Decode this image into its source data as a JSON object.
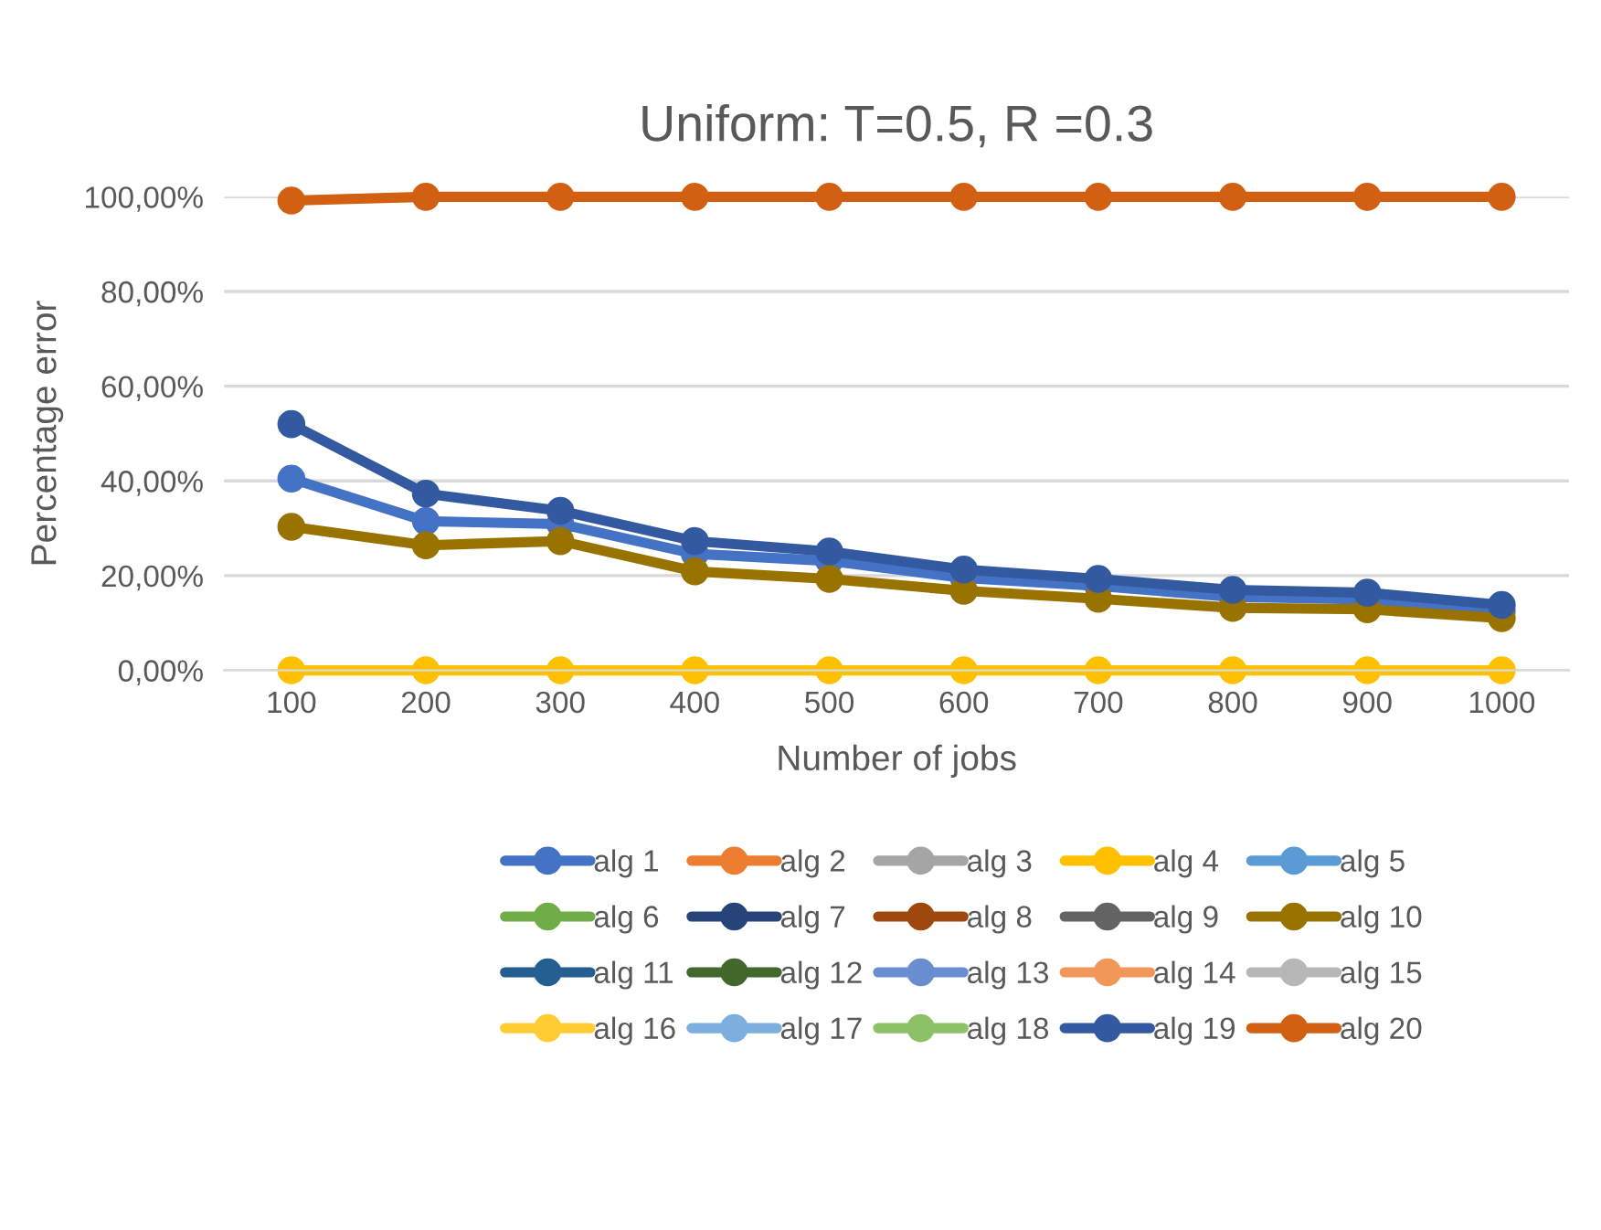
{
  "chart_data": {
    "type": "line",
    "title": "Uniform: T=0.5, R =0.3",
    "xlabel": "Number of jobs",
    "ylabel": "Percentage error",
    "categories": [
      "100",
      "200",
      "300",
      "400",
      "500",
      "600",
      "700",
      "800",
      "900",
      "1000"
    ],
    "ylim": [
      0,
      100
    ],
    "yticks": [
      {
        "value": 0,
        "label": "0,00%"
      },
      {
        "value": 20,
        "label": "20,00%"
      },
      {
        "value": 40,
        "label": "40,00%"
      },
      {
        "value": 60,
        "label": "60,00%"
      },
      {
        "value": 80,
        "label": "80,00%"
      },
      {
        "value": 100,
        "label": "100,00%"
      }
    ],
    "grid": "y",
    "legend": "bottom",
    "marker": "circle",
    "line_style": "solid",
    "series": [
      {
        "name": "alg 1",
        "color": "#4472c4",
        "values": [
          40.5,
          31.5,
          30.9,
          24.6,
          23.1,
          19.5,
          17.8,
          15.5,
          15.0,
          12.5
        ]
      },
      {
        "name": "alg 2",
        "color": "#ed7d31",
        "values": [
          null,
          null,
          null,
          null,
          null,
          null,
          null,
          null,
          null,
          null
        ]
      },
      {
        "name": "alg 3",
        "color": "#a5a5a5",
        "values": [
          null,
          null,
          null,
          null,
          null,
          null,
          null,
          null,
          null,
          null
        ]
      },
      {
        "name": "alg 4",
        "color": "#ffc000",
        "values": [
          0,
          0,
          0,
          0,
          0,
          0,
          0,
          0,
          0,
          0
        ]
      },
      {
        "name": "alg 5",
        "color": "#5b9bd5",
        "values": [
          null,
          null,
          null,
          null,
          null,
          null,
          null,
          null,
          null,
          null
        ]
      },
      {
        "name": "alg 6",
        "color": "#70ad47",
        "values": [
          null,
          null,
          null,
          null,
          null,
          null,
          null,
          null,
          null,
          null
        ]
      },
      {
        "name": "alg 7",
        "color": "#264478",
        "values": [
          null,
          null,
          null,
          null,
          null,
          null,
          null,
          null,
          null,
          null
        ]
      },
      {
        "name": "alg 8",
        "color": "#9e480e",
        "values": [
          null,
          null,
          null,
          null,
          null,
          null,
          null,
          null,
          null,
          null
        ]
      },
      {
        "name": "alg 9",
        "color": "#636363",
        "values": [
          null,
          null,
          null,
          null,
          null,
          null,
          null,
          null,
          null,
          null
        ]
      },
      {
        "name": "alg 10",
        "color": "#997300",
        "values": [
          30.3,
          26.4,
          27.3,
          20.9,
          19.3,
          16.8,
          15.1,
          13.2,
          12.9,
          11.0
        ]
      },
      {
        "name": "alg 11",
        "color": "#255e91",
        "values": [
          null,
          null,
          null,
          null,
          null,
          null,
          null,
          null,
          null,
          null
        ]
      },
      {
        "name": "alg 12",
        "color": "#43682b",
        "values": [
          null,
          null,
          null,
          null,
          null,
          null,
          null,
          null,
          null,
          null
        ]
      },
      {
        "name": "alg 13",
        "color": "#698ed0",
        "values": [
          null,
          null,
          null,
          null,
          null,
          null,
          null,
          null,
          null,
          null
        ]
      },
      {
        "name": "alg 14",
        "color": "#f1975a",
        "values": [
          null,
          null,
          null,
          null,
          null,
          null,
          null,
          null,
          null,
          null
        ]
      },
      {
        "name": "alg 15",
        "color": "#b7b7b7",
        "values": [
          null,
          null,
          null,
          null,
          null,
          null,
          null,
          null,
          null,
          null
        ]
      },
      {
        "name": "alg 16",
        "color": "#ffcd33",
        "values": [
          null,
          null,
          null,
          null,
          null,
          null,
          null,
          null,
          null,
          null
        ]
      },
      {
        "name": "alg 17",
        "color": "#7cafdd",
        "values": [
          null,
          null,
          null,
          null,
          null,
          null,
          null,
          null,
          null,
          null
        ]
      },
      {
        "name": "alg 18",
        "color": "#8cc168",
        "values": [
          null,
          null,
          null,
          null,
          null,
          null,
          null,
          null,
          null,
          null
        ]
      },
      {
        "name": "alg 19",
        "color": "#335aa1",
        "values": [
          52.0,
          37.3,
          33.7,
          27.3,
          25.1,
          21.3,
          19.3,
          17.0,
          16.4,
          13.8
        ]
      },
      {
        "name": "alg 20",
        "color": "#d26012",
        "values": [
          99.2,
          100,
          100,
          100,
          100,
          100,
          100,
          100,
          100,
          100
        ]
      }
    ]
  }
}
